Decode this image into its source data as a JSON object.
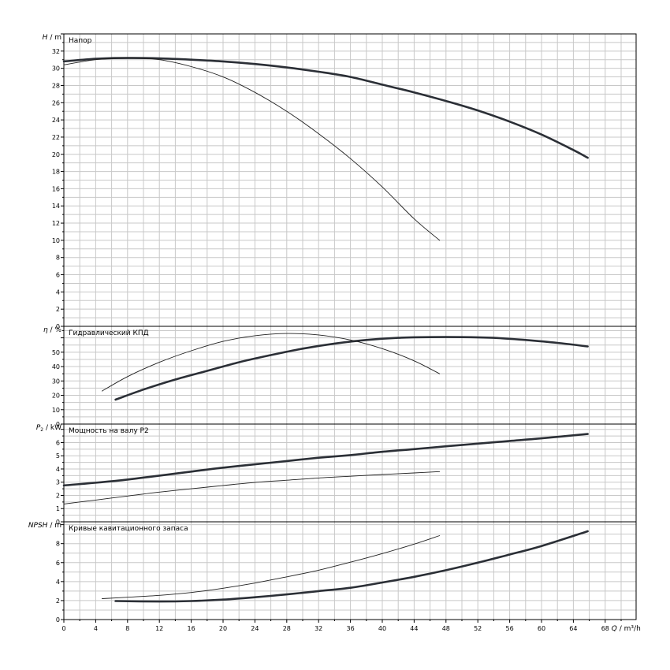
{
  "chart_data": {
    "type": "line",
    "grid": true,
    "x": {
      "label_symbol": "Q",
      "label_unit": "m³/h",
      "range": [
        0,
        72
      ],
      "major_ticks": [
        0,
        4,
        8,
        12,
        16,
        20,
        24,
        28,
        32,
        36,
        40,
        44,
        48,
        52,
        56,
        60,
        64,
        68
      ]
    },
    "panels": [
      {
        "title": "Напор",
        "ylabel_symbol": "H",
        "ylabel_sub": "",
        "ylabel_unit": "m",
        "ylim": [
          0,
          34
        ],
        "yticks": [
          0,
          2,
          4,
          6,
          8,
          10,
          12,
          14,
          16,
          18,
          20,
          22,
          24,
          26,
          28,
          30,
          32
        ],
        "series": [
          {
            "style": "thick",
            "points": [
              [
                0,
                30.8
              ],
              [
                4,
                31.1
              ],
              [
                8,
                31.2
              ],
              [
                12,
                31.15
              ],
              [
                16,
                31.0
              ],
              [
                20,
                30.8
              ],
              [
                24,
                30.5
              ],
              [
                28,
                30.1
              ],
              [
                32,
                29.6
              ],
              [
                36,
                29.0
              ],
              [
                40,
                28.1
              ],
              [
                44,
                27.2
              ],
              [
                48,
                26.2
              ],
              [
                52,
                25.1
              ],
              [
                56,
                23.8
              ],
              [
                60,
                22.3
              ],
              [
                64,
                20.5
              ],
              [
                65.8,
                19.6
              ]
            ]
          },
          {
            "style": "thin",
            "points": [
              [
                0,
                30.4
              ],
              [
                4,
                31.0
              ],
              [
                8,
                31.2
              ],
              [
                12,
                31.0
              ],
              [
                16,
                30.2
              ],
              [
                20,
                29.0
              ],
              [
                24,
                27.2
              ],
              [
                28,
                25.0
              ],
              [
                32,
                22.4
              ],
              [
                36,
                19.5
              ],
              [
                40,
                16.2
              ],
              [
                44,
                12.5
              ],
              [
                47.2,
                10.0
              ]
            ]
          }
        ]
      },
      {
        "title": "Гидравлический КПД",
        "ylabel_symbol": "η",
        "ylabel_sub": "",
        "ylabel_unit": "%",
        "ylim": [
          0,
          68
        ],
        "yticks": [
          0,
          10,
          20,
          30,
          40,
          50
        ],
        "series": [
          {
            "style": "thick",
            "points": [
              [
                6.5,
                17
              ],
              [
                10,
                24
              ],
              [
                14,
                31
              ],
              [
                18,
                37
              ],
              [
                22,
                43
              ],
              [
                26,
                48
              ],
              [
                30,
                52.5
              ],
              [
                34,
                56
              ],
              [
                38,
                58.5
              ],
              [
                42,
                60
              ],
              [
                46,
                60.5
              ],
              [
                50,
                60.5
              ],
              [
                54,
                60
              ],
              [
                58,
                58.5
              ],
              [
                62,
                56.5
              ],
              [
                65.8,
                54
              ]
            ]
          },
          {
            "style": "thin",
            "points": [
              [
                4.8,
                23
              ],
              [
                8,
                33
              ],
              [
                12,
                43
              ],
              [
                16,
                51
              ],
              [
                20,
                57.5
              ],
              [
                24,
                61.5
              ],
              [
                28,
                63
              ],
              [
                32,
                62
              ],
              [
                36,
                58.5
              ],
              [
                40,
                52.5
              ],
              [
                44,
                44
              ],
              [
                47.2,
                35
              ]
            ]
          }
        ]
      },
      {
        "title": "Мощность на валу P2",
        "ylabel_symbol": "P",
        "ylabel_sub": "2",
        "ylabel_unit": "kW",
        "ylim": [
          0,
          7.4
        ],
        "yticks": [
          0,
          1,
          2,
          3,
          4,
          5,
          6
        ],
        "series": [
          {
            "style": "thick",
            "points": [
              [
                0,
                2.75
              ],
              [
                6.5,
                3.1
              ],
              [
                12,
                3.5
              ],
              [
                16,
                3.8
              ],
              [
                20,
                4.1
              ],
              [
                24,
                4.35
              ],
              [
                28,
                4.6
              ],
              [
                32,
                4.85
              ],
              [
                36,
                5.05
              ],
              [
                40,
                5.3
              ],
              [
                44,
                5.5
              ],
              [
                48,
                5.72
              ],
              [
                52,
                5.92
              ],
              [
                56,
                6.12
              ],
              [
                60,
                6.32
              ],
              [
                65.8,
                6.65
              ]
            ]
          },
          {
            "style": "thin",
            "points": [
              [
                0,
                1.35
              ],
              [
                4,
                1.65
              ],
              [
                8,
                1.95
              ],
              [
                12,
                2.25
              ],
              [
                16,
                2.5
              ],
              [
                20,
                2.75
              ],
              [
                24,
                2.98
              ],
              [
                28,
                3.15
              ],
              [
                32,
                3.32
              ],
              [
                36,
                3.45
              ],
              [
                40,
                3.58
              ],
              [
                44,
                3.7
              ],
              [
                47.2,
                3.8
              ]
            ]
          }
        ]
      },
      {
        "title": "Кривые кавитационного запаса",
        "ylabel_symbol": "NPSH",
        "ylabel_sub": "",
        "ylabel_unit": "m",
        "ylim": [
          0,
          10.3
        ],
        "yticks": [
          0,
          2,
          4,
          6,
          8
        ],
        "series": [
          {
            "style": "thick",
            "points": [
              [
                6.5,
                1.95
              ],
              [
                12,
                1.9
              ],
              [
                16,
                1.95
              ],
              [
                20,
                2.1
              ],
              [
                24,
                2.35
              ],
              [
                28,
                2.65
              ],
              [
                32,
                3.0
              ],
              [
                36,
                3.35
              ],
              [
                40,
                3.9
              ],
              [
                44,
                4.5
              ],
              [
                48,
                5.2
              ],
              [
                52,
                6.0
              ],
              [
                56,
                6.85
              ],
              [
                60,
                7.75
              ],
              [
                65.8,
                9.3
              ]
            ]
          },
          {
            "style": "thin",
            "points": [
              [
                4.8,
                2.2
              ],
              [
                8,
                2.35
              ],
              [
                12,
                2.55
              ],
              [
                16,
                2.85
              ],
              [
                20,
                3.3
              ],
              [
                24,
                3.85
              ],
              [
                28,
                4.5
              ],
              [
                32,
                5.2
              ],
              [
                36,
                6.05
              ],
              [
                40,
                6.95
              ],
              [
                44,
                7.95
              ],
              [
                47.2,
                8.85
              ]
            ]
          }
        ]
      }
    ]
  }
}
